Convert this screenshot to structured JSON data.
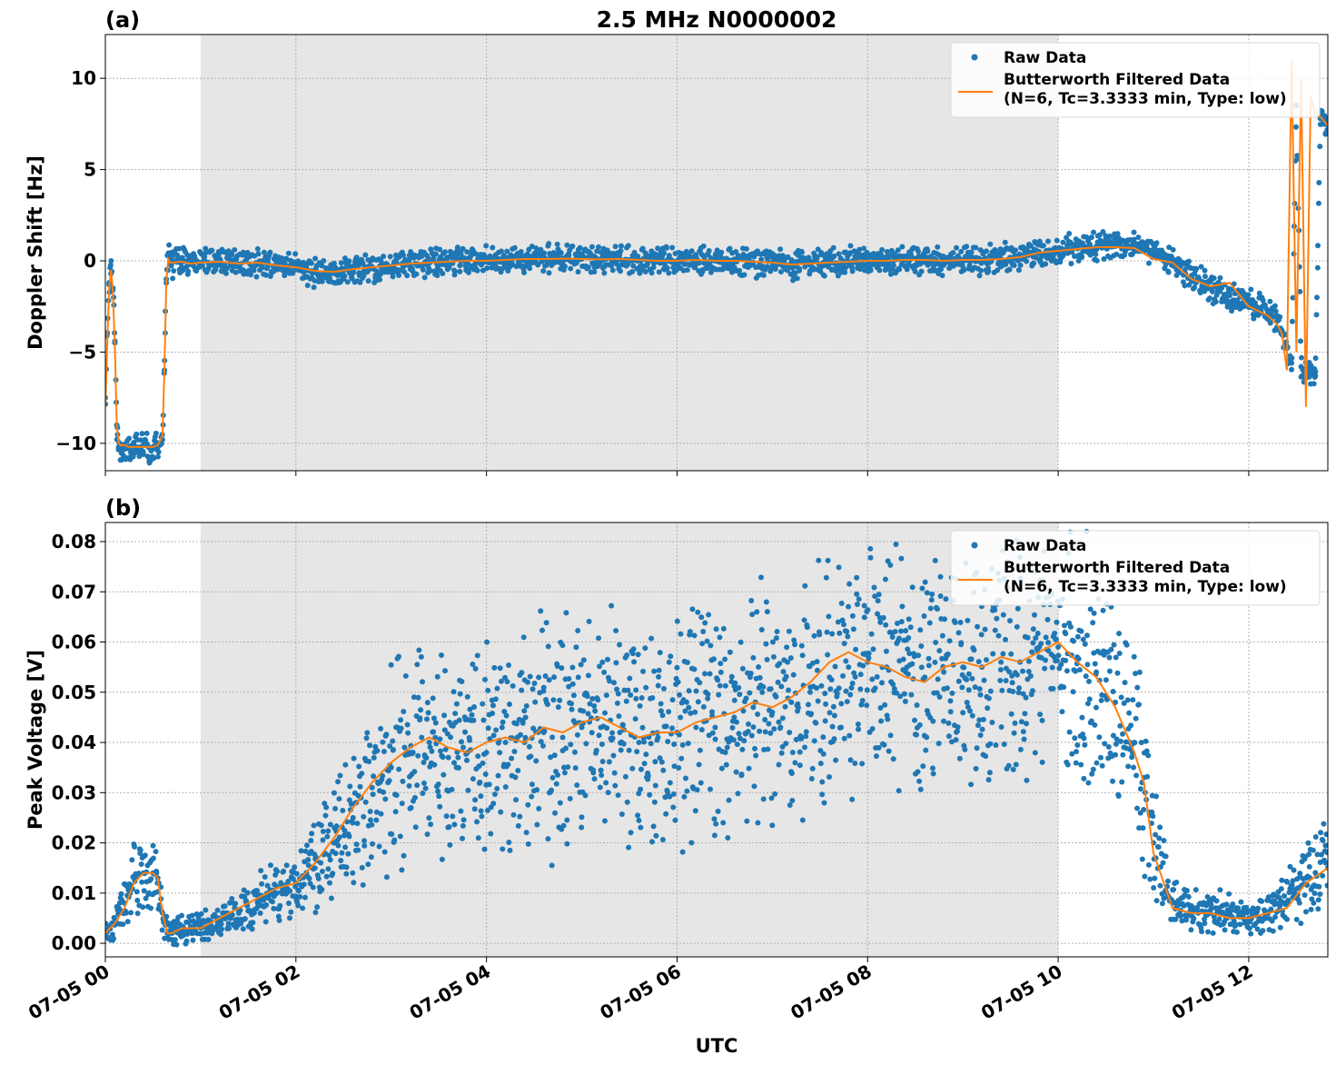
{
  "chart_data": [
    {
      "type": "scatter",
      "panel_label": "(a)",
      "title": "2.5 MHz N0000002",
      "ylabel": "Doppler Shift [Hz]",
      "xlabel": "",
      "x_range_hours": [
        0,
        12.83
      ],
      "ylim": [
        -11.5,
        12.4
      ],
      "y_ticks": [
        -10,
        -5,
        0,
        5,
        10
      ],
      "y_tick_labels": [
        "−10",
        "−5",
        "0",
        "5",
        "10"
      ],
      "x_ticks_hours": [
        0,
        2,
        4,
        6,
        8,
        10,
        12
      ],
      "x_tick_labels": [
        "07-05 00",
        "07-05 02",
        "07-05 04",
        "07-05 06",
        "07-05 08",
        "07-05 10",
        "07-05 12"
      ],
      "show_x_tick_labels": false,
      "grid": true,
      "shaded_span_hours": [
        1.0,
        10.0
      ],
      "legend_position": "upper right",
      "series": [
        {
          "name": "Raw Data",
          "style": "points",
          "color": "#1f77b4",
          "x": [
            0,
            0.02,
            0.04,
            0.06,
            0.08,
            0.1,
            0.12,
            0.14,
            0.16,
            0.2,
            0.25,
            0.3,
            0.35,
            0.4,
            0.45,
            0.5,
            0.55,
            0.6,
            0.62,
            0.64,
            0.66,
            0.68,
            0.7,
            0.8,
            0.9,
            1.0,
            1.2,
            1.4,
            1.6,
            1.8,
            2.0,
            2.2,
            2.4,
            2.6,
            2.8,
            3.0,
            3.2,
            3.4,
            3.6,
            3.8,
            4.0,
            4.2,
            4.4,
            4.6,
            4.8,
            5.0,
            5.2,
            5.4,
            5.6,
            5.8,
            6.0,
            6.2,
            6.4,
            6.6,
            6.8,
            7.0,
            7.2,
            7.4,
            7.6,
            7.8,
            8.0,
            8.2,
            8.4,
            8.6,
            8.8,
            9.0,
            9.2,
            9.4,
            9.6,
            9.8,
            10.0,
            10.2,
            10.4,
            10.6,
            10.8,
            11.0,
            11.2,
            11.4,
            11.6,
            11.8,
            12.0,
            12.2,
            12.3,
            12.35,
            12.4,
            12.45,
            12.5,
            12.55,
            12.6,
            12.65,
            12.7,
            12.75,
            12.8,
            12.83
          ],
          "values": [
            -7.5,
            -4.0,
            -1.2,
            0.0,
            -1.5,
            -4.5,
            -9.0,
            -10.2,
            -10.3,
            -10.2,
            -10.3,
            -10.2,
            -10.3,
            -10.1,
            -10.2,
            -10.3,
            -10.2,
            -9.8,
            -6.0,
            -1.0,
            0.3,
            0.0,
            -0.1,
            0.0,
            -0.2,
            -0.1,
            0.0,
            -0.2,
            -0.1,
            -0.3,
            -0.4,
            -0.6,
            -0.7,
            -0.5,
            -0.4,
            -0.3,
            -0.2,
            -0.1,
            -0.1,
            0.0,
            0.0,
            0.05,
            0.1,
            0.1,
            0.15,
            0.1,
            0.1,
            0.1,
            0.05,
            0.0,
            0.0,
            0.05,
            0.0,
            0.0,
            -0.1,
            -0.1,
            -0.3,
            -0.15,
            -0.1,
            -0.05,
            0.0,
            0.0,
            0.05,
            0.05,
            0.0,
            0.05,
            0.05,
            0.1,
            0.2,
            0.5,
            0.6,
            0.7,
            0.8,
            0.8,
            0.9,
            0.5,
            0.0,
            -0.8,
            -1.5,
            -1.9,
            -2.3,
            -2.8,
            -3.3,
            -4.0,
            -4.8,
            -5.6,
            8.5,
            -5.8,
            -6.0,
            -6.1,
            -6.3,
            7.8,
            7.6,
            7.4
          ]
        },
        {
          "name": "Butterworth Filtered Data\n(N=6, Tc=3.3333 min, Type: low)",
          "style": "line",
          "color": "#ff7f0e",
          "x": [
            0,
            0.02,
            0.04,
            0.06,
            0.08,
            0.1,
            0.12,
            0.14,
            0.16,
            0.2,
            0.25,
            0.3,
            0.35,
            0.4,
            0.45,
            0.5,
            0.55,
            0.6,
            0.62,
            0.64,
            0.66,
            0.68,
            0.7,
            0.8,
            0.9,
            1.0,
            1.2,
            1.4,
            1.6,
            1.8,
            2.0,
            2.2,
            2.4,
            2.6,
            2.8,
            3.0,
            3.2,
            3.4,
            3.6,
            3.8,
            4.0,
            4.2,
            4.4,
            4.6,
            4.8,
            5.0,
            5.2,
            5.4,
            5.6,
            5.8,
            6.0,
            6.2,
            6.4,
            6.6,
            6.8,
            7.0,
            7.2,
            7.4,
            7.6,
            7.8,
            8.0,
            8.2,
            8.4,
            8.6,
            8.8,
            9.0,
            9.2,
            9.4,
            9.6,
            9.8,
            10.0,
            10.2,
            10.4,
            10.6,
            10.8,
            11.0,
            11.2,
            11.4,
            11.6,
            11.8,
            12.0,
            12.2,
            12.3,
            12.35,
            12.4,
            12.45,
            12.5,
            12.55,
            12.6,
            12.65,
            12.7,
            12.75,
            12.8,
            12.83
          ],
          "values": [
            -8.0,
            -4.5,
            -1.5,
            -0.5,
            -1.8,
            -4.8,
            -9.0,
            -10.0,
            -10.1,
            -10.1,
            -10.2,
            -10.2,
            -10.2,
            -10.2,
            -10.2,
            -10.2,
            -10.1,
            -9.6,
            -6.0,
            -1.2,
            0.1,
            -0.1,
            -0.1,
            -0.05,
            -0.15,
            -0.1,
            -0.05,
            -0.15,
            -0.1,
            -0.25,
            -0.35,
            -0.55,
            -0.6,
            -0.45,
            -0.35,
            -0.25,
            -0.15,
            -0.1,
            -0.05,
            0.0,
            0.0,
            0.05,
            0.1,
            0.1,
            0.12,
            0.1,
            0.08,
            0.1,
            0.05,
            0.0,
            0.0,
            0.05,
            0.0,
            0.0,
            -0.05,
            -0.1,
            -0.2,
            -0.15,
            -0.1,
            -0.05,
            0.0,
            0.0,
            0.05,
            0.05,
            0.0,
            0.05,
            0.05,
            0.1,
            0.2,
            0.45,
            0.55,
            0.65,
            0.75,
            0.75,
            0.7,
            0.1,
            -0.1,
            -1.0,
            -1.4,
            -1.2,
            -2.5,
            -3.0,
            -3.5,
            -4.0,
            -6.0,
            11.0,
            -5.0,
            10.0,
            -8.0,
            9.0,
            8.0,
            7.9,
            7.6,
            7.4
          ]
        }
      ]
    },
    {
      "type": "scatter",
      "panel_label": "(b)",
      "title": "",
      "ylabel": "Peak Voltage [V]",
      "xlabel": "UTC",
      "x_range_hours": [
        0,
        12.83
      ],
      "ylim": [
        -0.0027,
        0.0838
      ],
      "y_ticks": [
        0.0,
        0.01,
        0.02,
        0.03,
        0.04,
        0.05,
        0.06,
        0.07,
        0.08
      ],
      "y_tick_labels": [
        "0.00",
        "0.01",
        "0.02",
        "0.03",
        "0.04",
        "0.05",
        "0.06",
        "0.07",
        "0.08"
      ],
      "x_ticks_hours": [
        0,
        2,
        4,
        6,
        8,
        10,
        12
      ],
      "x_tick_labels": [
        "07-05 00",
        "07-05 02",
        "07-05 04",
        "07-05 06",
        "07-05 08",
        "07-05 10",
        "07-05 12"
      ],
      "show_x_tick_labels": true,
      "grid": true,
      "shaded_span_hours": [
        1.0,
        10.0
      ],
      "legend_position": "upper right",
      "series": [
        {
          "name": "Raw Data",
          "style": "points",
          "color": "#1f77b4",
          "x": [
            0,
            0.1,
            0.2,
            0.3,
            0.4,
            0.5,
            0.55,
            0.6,
            0.65,
            0.7,
            0.8,
            1.0,
            1.2,
            1.4,
            1.6,
            1.8,
            2.0,
            2.2,
            2.4,
            2.6,
            2.8,
            3.0,
            3.2,
            3.4,
            3.6,
            3.8,
            4.0,
            4.2,
            4.4,
            4.6,
            4.8,
            5.0,
            5.2,
            5.4,
            5.6,
            5.8,
            6.0,
            6.2,
            6.4,
            6.6,
            6.8,
            7.0,
            7.2,
            7.4,
            7.6,
            7.8,
            8.0,
            8.2,
            8.4,
            8.6,
            8.8,
            9.0,
            9.2,
            9.4,
            9.6,
            9.8,
            10.0,
            10.2,
            10.4,
            10.6,
            10.8,
            10.9,
            11.0,
            11.2,
            11.4,
            11.6,
            11.8,
            12.0,
            12.2,
            12.4,
            12.6,
            12.83
          ],
          "values": [
            0.002,
            0.004,
            0.008,
            0.013,
            0.014,
            0.014,
            0.013,
            0.006,
            0.002,
            0.002,
            0.003,
            0.003,
            0.004,
            0.006,
            0.008,
            0.01,
            0.012,
            0.015,
            0.02,
            0.025,
            0.031,
            0.035,
            0.038,
            0.04,
            0.037,
            0.038,
            0.038,
            0.04,
            0.04,
            0.042,
            0.041,
            0.043,
            0.043,
            0.042,
            0.04,
            0.041,
            0.042,
            0.043,
            0.043,
            0.045,
            0.047,
            0.046,
            0.048,
            0.051,
            0.053,
            0.055,
            0.056,
            0.055,
            0.054,
            0.053,
            0.054,
            0.055,
            0.055,
            0.056,
            0.056,
            0.057,
            0.059,
            0.057,
            0.054,
            0.048,
            0.04,
            0.033,
            0.02,
            0.008,
            0.006,
            0.006,
            0.006,
            0.005,
            0.006,
            0.008,
            0.013,
            0.015
          ]
        },
        {
          "name": "Butterworth Filtered Data\n(N=6, Tc=3.3333 min, Type: low)",
          "style": "line",
          "color": "#ff7f0e",
          "x": [
            0,
            0.1,
            0.2,
            0.3,
            0.4,
            0.5,
            0.55,
            0.6,
            0.65,
            0.7,
            0.8,
            1.0,
            1.2,
            1.4,
            1.6,
            1.8,
            2.0,
            2.2,
            2.4,
            2.6,
            2.8,
            3.0,
            3.2,
            3.4,
            3.6,
            3.8,
            4.0,
            4.2,
            4.4,
            4.6,
            4.8,
            5.0,
            5.2,
            5.4,
            5.6,
            5.8,
            6.0,
            6.2,
            6.4,
            6.6,
            6.8,
            7.0,
            7.2,
            7.4,
            7.6,
            7.8,
            8.0,
            8.2,
            8.4,
            8.6,
            8.8,
            9.0,
            9.2,
            9.4,
            9.6,
            9.8,
            10.0,
            10.2,
            10.4,
            10.6,
            10.8,
            10.9,
            11.0,
            11.2,
            11.4,
            11.6,
            11.8,
            12.0,
            12.2,
            12.4,
            12.6,
            12.83
          ],
          "values": [
            0.002,
            0.004,
            0.007,
            0.012,
            0.014,
            0.014,
            0.013,
            0.006,
            0.002,
            0.002,
            0.003,
            0.003,
            0.005,
            0.007,
            0.009,
            0.011,
            0.012,
            0.016,
            0.021,
            0.027,
            0.032,
            0.036,
            0.039,
            0.041,
            0.039,
            0.038,
            0.04,
            0.041,
            0.04,
            0.043,
            0.042,
            0.044,
            0.045,
            0.043,
            0.041,
            0.042,
            0.042,
            0.044,
            0.045,
            0.046,
            0.048,
            0.047,
            0.049,
            0.052,
            0.056,
            0.058,
            0.056,
            0.055,
            0.053,
            0.052,
            0.055,
            0.056,
            0.055,
            0.057,
            0.056,
            0.058,
            0.06,
            0.056,
            0.053,
            0.047,
            0.038,
            0.032,
            0.018,
            0.007,
            0.006,
            0.006,
            0.005,
            0.005,
            0.006,
            0.007,
            0.012,
            0.015
          ]
        }
      ]
    }
  ]
}
